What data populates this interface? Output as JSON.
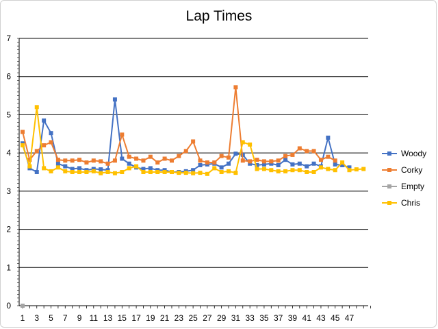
{
  "chart_data": {
    "type": "line",
    "title": "Lap Times",
    "xlabel": "",
    "ylabel": "",
    "ylim": [
      0,
      7
    ],
    "y_ticks": [
      0,
      1,
      2,
      3,
      4,
      5,
      6,
      7
    ],
    "x_tick_labels": [
      1,
      3,
      5,
      7,
      9,
      11,
      13,
      15,
      17,
      19,
      21,
      23,
      25,
      27,
      29,
      31,
      33,
      35,
      37,
      39,
      41,
      43,
      45,
      47
    ],
    "x_count": 50,
    "grid": "horizontal",
    "legend_position": "right",
    "series": [
      {
        "name": "Woody",
        "color": "#4472C4",
        "marker": "square",
        "values": [
          4.25,
          3.6,
          3.5,
          4.85,
          4.52,
          3.72,
          3.65,
          3.58,
          3.6,
          3.55,
          3.58,
          3.57,
          3.55,
          5.4,
          3.85,
          3.72,
          3.62,
          3.58,
          3.6,
          3.55,
          3.55,
          3.5,
          3.5,
          3.52,
          3.55,
          3.68,
          3.7,
          3.72,
          3.62,
          3.72,
          3.98,
          3.95,
          3.72,
          3.68,
          3.7,
          3.72,
          3.68,
          3.82,
          3.7,
          3.72,
          3.65,
          3.72,
          3.65,
          4.4,
          3.7,
          3.68,
          3.62
        ]
      },
      {
        "name": "Corky",
        "color": "#ED7D31",
        "marker": "square",
        "values": [
          4.55,
          3.82,
          4.05,
          4.2,
          4.28,
          3.82,
          3.8,
          3.8,
          3.82,
          3.75,
          3.8,
          3.78,
          3.72,
          3.8,
          4.48,
          3.9,
          3.85,
          3.8,
          3.9,
          3.75,
          3.85,
          3.8,
          3.92,
          4.05,
          4.3,
          3.8,
          3.75,
          3.75,
          3.92,
          3.88,
          5.72,
          3.8,
          3.78,
          3.82,
          3.78,
          3.78,
          3.8,
          3.92,
          3.95,
          4.12,
          4.05,
          4.05,
          3.82,
          3.9,
          3.8
        ]
      },
      {
        "name": "Empty",
        "color": "#A5A5A5",
        "marker": "square",
        "values": [
          0
        ]
      },
      {
        "name": "Chris",
        "color": "#FFC000",
        "marker": "square",
        "values": [
          4.2,
          3.65,
          5.2,
          3.6,
          3.52,
          3.62,
          3.52,
          3.5,
          3.5,
          3.5,
          3.52,
          3.47,
          3.5,
          3.47,
          3.5,
          3.6,
          3.65,
          3.5,
          3.5,
          3.5,
          3.5,
          3.5,
          3.48,
          3.48,
          3.47,
          3.48,
          3.45,
          3.6,
          3.5,
          3.52,
          3.48,
          4.28,
          4.22,
          3.58,
          3.58,
          3.55,
          3.52,
          3.52,
          3.55,
          3.55,
          3.5,
          3.5,
          3.62,
          3.58,
          3.55,
          3.75,
          3.55,
          3.57,
          3.58
        ]
      }
    ]
  }
}
